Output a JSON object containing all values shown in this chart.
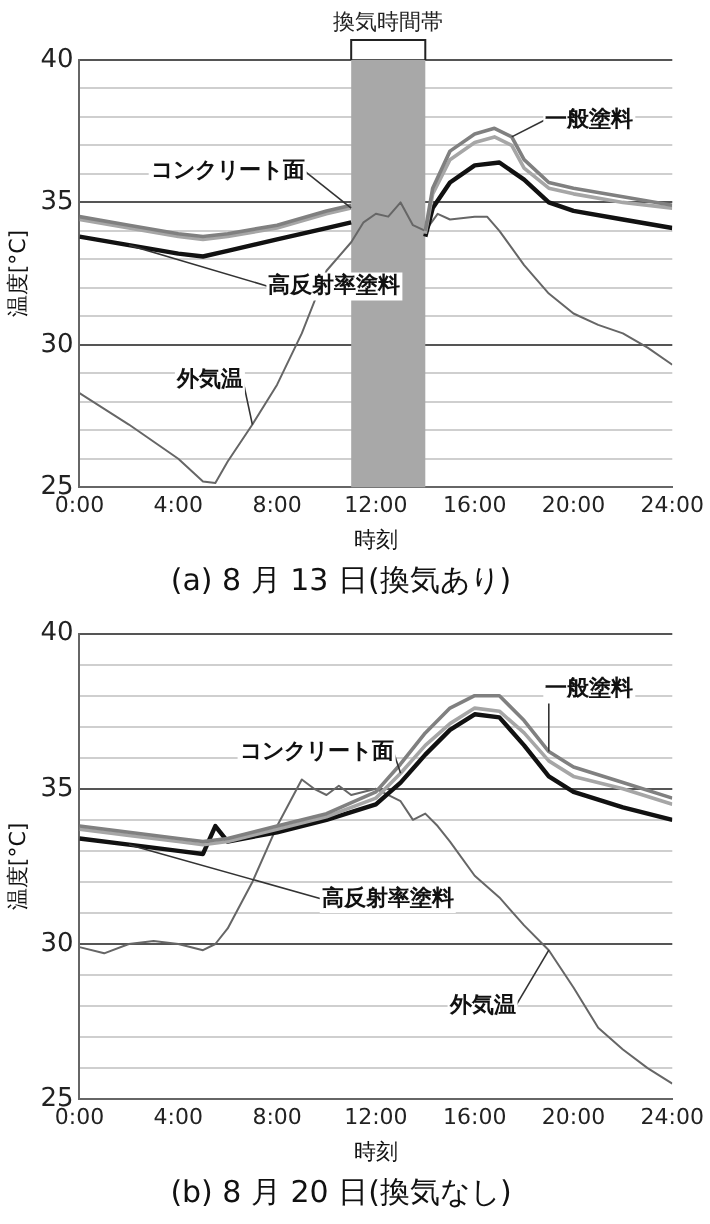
{
  "chart_data": [
    {
      "type": "line",
      "title": "(a) 8 月 13 日(換気あり)",
      "xlabel": "時刻",
      "ylabel": "温度[°C]",
      "legend": false,
      "grid": "y",
      "marker": "none",
      "xlim": [
        0,
        24
      ],
      "xticks": [
        {
          "value": 0,
          "label": "0:00"
        },
        {
          "value": 4,
          "label": "4:00"
        },
        {
          "value": 8,
          "label": "8:00"
        },
        {
          "value": 12,
          "label": "12:00"
        },
        {
          "value": 16,
          "label": "16:00"
        },
        {
          "value": 20,
          "label": "20:00"
        },
        {
          "value": 24,
          "label": "24:00"
        }
      ],
      "ylim": [
        25,
        40
      ],
      "yticks": [
        25,
        {
          "value": 26,
          "label": null
        },
        {
          "value": 27,
          "label": null
        },
        {
          "value": 28,
          "label": null
        },
        {
          "value": 29,
          "label": null
        },
        30,
        {
          "value": 31,
          "label": null
        },
        {
          "value": 32,
          "label": null
        },
        {
          "value": 33,
          "label": null
        },
        {
          "value": 34,
          "label": null
        },
        35,
        {
          "value": 36,
          "label": null
        },
        {
          "value": 37,
          "label": null
        },
        {
          "value": 38,
          "label": null
        },
        {
          "value": 39,
          "label": null
        },
        40
      ],
      "bands": [
        {
          "axis": "x",
          "from": 11,
          "to": 14,
          "label": "換気時間帯",
          "color": "#a8a8a8"
        }
      ],
      "series": [
        {
          "name": "一般塗料",
          "color": "#808080",
          "x": [
            0,
            2,
            4,
            5,
            6,
            8,
            10,
            11,
            12.5,
            14,
            14.3,
            15,
            16,
            16.8,
            17.5,
            18,
            19,
            20,
            22,
            24
          ],
          "values": [
            34.5,
            34.2,
            33.9,
            33.8,
            33.9,
            34.2,
            34.7,
            34.9,
            null,
            34.0,
            35.5,
            36.8,
            37.4,
            37.6,
            37.3,
            36.5,
            35.7,
            35.5,
            35.2,
            34.9
          ]
        },
        {
          "name": "コンクリート面",
          "color": "#a6a6a6",
          "x": [
            0,
            2,
            4,
            5,
            6,
            8,
            10,
            11,
            12.5,
            14,
            14.3,
            15,
            16,
            16.8,
            17.5,
            18,
            19,
            20,
            22,
            24
          ],
          "values": [
            34.4,
            34.1,
            33.8,
            33.7,
            33.8,
            34.1,
            34.6,
            34.8,
            null,
            33.9,
            35.3,
            36.5,
            37.1,
            37.3,
            37.0,
            36.2,
            35.5,
            35.3,
            35.0,
            34.8
          ]
        },
        {
          "name": "高反射率塗料",
          "color": "#111111",
          "x": [
            0,
            2,
            4,
            5,
            6,
            8,
            10,
            11,
            12.5,
            14,
            14.3,
            15,
            16,
            17,
            18,
            19,
            20,
            22,
            24
          ],
          "values": [
            33.8,
            33.5,
            33.2,
            33.1,
            33.3,
            33.7,
            34.1,
            34.3,
            null,
            33.8,
            34.8,
            35.7,
            36.3,
            36.4,
            35.8,
            35.0,
            34.7,
            34.4,
            34.1
          ]
        },
        {
          "name": "外気温",
          "color": "#666666",
          "x": [
            0,
            2,
            4,
            5,
            5.5,
            6,
            7,
            8,
            9,
            10,
            11,
            11.5,
            12,
            12.5,
            13,
            13.5,
            14,
            14.5,
            15,
            16,
            16.5,
            17,
            18,
            19,
            20,
            21,
            22,
            23,
            24
          ],
          "values": [
            28.3,
            27.2,
            26.0,
            25.2,
            25.15,
            25.9,
            27.2,
            28.6,
            30.4,
            32.6,
            33.6,
            34.3,
            34.6,
            34.5,
            35.0,
            34.2,
            34.0,
            34.6,
            34.4,
            34.5,
            34.5,
            34.0,
            32.8,
            31.8,
            31.1,
            30.7,
            30.4,
            29.9,
            29.3
          ]
        }
      ]
    },
    {
      "type": "line",
      "title": "(b) 8 月 20 日(換気なし)",
      "xlabel": "時刻",
      "ylabel": "温度[°C]",
      "legend": false,
      "grid": "y",
      "marker": "none",
      "xlim": [
        0,
        24
      ],
      "xticks": [
        {
          "value": 0,
          "label": "0:00"
        },
        {
          "value": 4,
          "label": "4:00"
        },
        {
          "value": 8,
          "label": "8:00"
        },
        {
          "value": 12,
          "label": "12:00"
        },
        {
          "value": 16,
          "label": "16:00"
        },
        {
          "value": 20,
          "label": "20:00"
        },
        {
          "value": 24,
          "label": "24:00"
        }
      ],
      "ylim": [
        25,
        40
      ],
      "yticks": [
        25,
        {
          "value": 26,
          "label": null
        },
        {
          "value": 27,
          "label": null
        },
        {
          "value": 28,
          "label": null
        },
        {
          "value": 29,
          "label": null
        },
        30,
        {
          "value": 31,
          "label": null
        },
        {
          "value": 32,
          "label": null
        },
        {
          "value": 33,
          "label": null
        },
        {
          "value": 34,
          "label": null
        },
        35,
        {
          "value": 36,
          "label": null
        },
        {
          "value": 37,
          "label": null
        },
        {
          "value": 38,
          "label": null
        },
        {
          "value": 39,
          "label": null
        },
        40
      ],
      "series": [
        {
          "name": "一般塗料",
          "color": "#808080",
          "x": [
            0,
            2,
            4,
            5,
            6,
            8,
            10,
            12,
            13,
            14,
            15,
            16,
            17,
            18,
            19,
            20,
            22,
            24
          ],
          "values": [
            33.8,
            33.6,
            33.4,
            33.3,
            33.4,
            33.8,
            34.2,
            34.9,
            35.8,
            36.8,
            37.6,
            38.0,
            38.0,
            37.2,
            36.2,
            35.7,
            35.2,
            34.7
          ]
        },
        {
          "name": "コンクリート面",
          "color": "#a6a6a6",
          "x": [
            0,
            2,
            4,
            5,
            6,
            8,
            10,
            12,
            13,
            14,
            15,
            16,
            17,
            18,
            19,
            20,
            22,
            24
          ],
          "values": [
            33.7,
            33.5,
            33.3,
            33.2,
            33.3,
            33.7,
            34.1,
            34.7,
            35.5,
            36.4,
            37.1,
            37.6,
            37.5,
            36.8,
            35.9,
            35.4,
            35.0,
            34.5
          ]
        },
        {
          "name": "高反射率塗料",
          "color": "#111111",
          "x": [
            0,
            2,
            4,
            5,
            5.5,
            6,
            8,
            10,
            12,
            13,
            14,
            15,
            16,
            17,
            18,
            19,
            20,
            22,
            24
          ],
          "values": [
            33.4,
            33.2,
            33.0,
            32.9,
            33.8,
            33.3,
            33.6,
            34.0,
            34.5,
            35.2,
            36.1,
            36.9,
            37.4,
            37.3,
            36.4,
            35.4,
            34.9,
            34.4,
            34.0
          ]
        },
        {
          "name": "外気温",
          "color": "#666666",
          "x": [
            0,
            1,
            2,
            3,
            4,
            5,
            5.5,
            6,
            7,
            8,
            9,
            9.5,
            10,
            10.5,
            11,
            12,
            13,
            13.5,
            14,
            14.5,
            15,
            16,
            17,
            18,
            19,
            20,
            21,
            22,
            23,
            24
          ],
          "values": [
            29.9,
            29.7,
            30.0,
            30.1,
            30.0,
            29.8,
            30.0,
            30.5,
            32.0,
            33.8,
            35.3,
            35.0,
            34.8,
            35.1,
            34.8,
            35.0,
            34.6,
            34.0,
            34.2,
            33.8,
            33.3,
            32.2,
            31.5,
            30.6,
            29.8,
            28.6,
            27.3,
            26.6,
            26.0,
            25.5
          ]
        }
      ]
    }
  ]
}
